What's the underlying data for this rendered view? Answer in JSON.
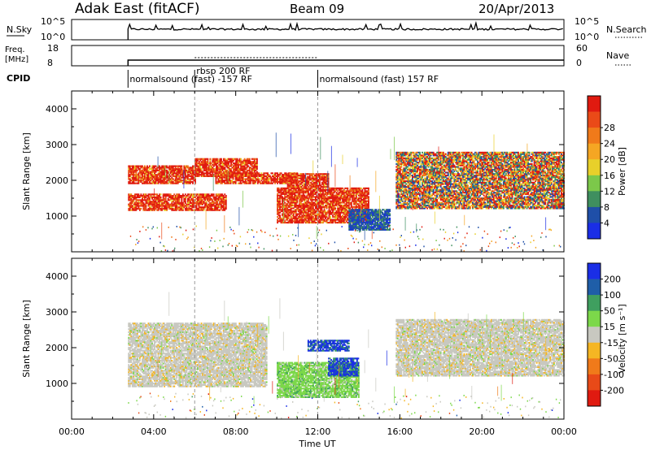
{
  "header": {
    "station": "Adak East (fitACF)",
    "beam": "Beam 09",
    "date": "20/Apr/2013"
  },
  "noise_panel": {
    "left_label": "N.Sky",
    "left_ticks": [
      "10^5",
      "10^0"
    ],
    "right_ticks": [
      "10^5",
      "10^0"
    ],
    "right_label": "N.Search"
  },
  "freq_panel": {
    "left_label_line1": "Freq.",
    "left_label_line2": "[MHz]",
    "left_ticks": [
      "18",
      "8"
    ],
    "right_ticks": [
      "60",
      "0"
    ],
    "right_label": "Nave"
  },
  "cpid": {
    "label": "CPID",
    "segments": [
      {
        "label": "normalsound (fast) -157 RF",
        "start_hour": 2.75
      },
      {
        "label": "rbsp 200 RF",
        "start_hour": 6.0
      },
      {
        "label": "normalsound (fast) 157 RF",
        "start_hour": 12.0
      }
    ]
  },
  "time_axis": {
    "label": "Time UT",
    "ticks": [
      "00:00",
      "04:00",
      "08:00",
      "12:00",
      "16:00",
      "20:00",
      "00:00"
    ],
    "range_hours": [
      0,
      24
    ]
  },
  "power_panel": {
    "ylabel": "Slant Range [km]",
    "yticks": [
      "1000",
      "2000",
      "3000",
      "4000"
    ],
    "colorbar_label": "Power [dB]",
    "colorbar_ticks": [
      "4",
      "8",
      "12",
      "16",
      "20",
      "24",
      "28"
    ],
    "colors": [
      "#1a2ee6",
      "#1f4fa8",
      "#3f8f5f",
      "#7cc84a",
      "#e8d02a",
      "#f5a623",
      "#f07a1a",
      "#ea4a18",
      "#e01a10"
    ]
  },
  "velocity_panel": {
    "ylabel": "Slant Range [km]",
    "yticks": [
      "1000",
      "2000",
      "3000",
      "4000"
    ],
    "colorbar_label": "Velocity [m s⁻¹]",
    "colorbar_ticks": [
      "200",
      "100",
      "50",
      "15",
      "-15",
      "-50",
      "-100",
      "-200"
    ],
    "colors": [
      "#1a2ee6",
      "#1f5ea8",
      "#3f9f5f",
      "#7cd84a",
      "#c8c8c0",
      "#f5b623",
      "#f07a1a",
      "#e84a18",
      "#e01a10"
    ]
  },
  "chart_data": {
    "type": "heatmap",
    "title": "Adak East (fitACF)",
    "xlabel": "Time UT",
    "ylabel": "Slant Range [km]",
    "xlim_hours": [
      0,
      24
    ],
    "ylim_km": [
      0,
      4500
    ],
    "power_blobs": [
      {
        "t0": 2.75,
        "t1": 7.5,
        "r0": 1150,
        "r1": 1600,
        "level": "high"
      },
      {
        "t0": 2.75,
        "t1": 6.0,
        "r0": 1900,
        "r1": 2400,
        "level": "high"
      },
      {
        "t0": 6.0,
        "t1": 9.0,
        "r0": 2100,
        "r1": 2600,
        "level": "high"
      },
      {
        "t0": 7.0,
        "t1": 11.0,
        "r0": 1900,
        "r1": 2200,
        "level": "high"
      },
      {
        "t0": 10.5,
        "t1": 12.5,
        "r0": 1800,
        "r1": 2200,
        "level": "high"
      },
      {
        "t0": 10.0,
        "t1": 14.5,
        "r0": 800,
        "r1": 1800,
        "level": "high"
      },
      {
        "t0": 13.5,
        "t1": 15.5,
        "r0": 600,
        "r1": 1200,
        "level": "low"
      },
      {
        "t0": 15.8,
        "t1": 24.0,
        "r0": 1200,
        "r1": 2800,
        "level": "mid"
      }
    ],
    "velocity_blobs": [
      {
        "t0": 2.75,
        "t1": 9.5,
        "r0": 900,
        "r1": 2700,
        "class": "-15..15"
      },
      {
        "t0": 10.0,
        "t1": 14.0,
        "r0": 600,
        "r1": 1600,
        "class": "15..50"
      },
      {
        "t0": 11.5,
        "t1": 13.5,
        "r0": 1900,
        "r1": 2200,
        "class": "100..200"
      },
      {
        "t0": 12.5,
        "t1": 14.0,
        "r0": 1200,
        "r1": 1700,
        "class": "100..200"
      },
      {
        "t0": 15.8,
        "t1": 24.0,
        "r0": 1200,
        "r1": 2800,
        "class": "-15..15"
      }
    ]
  }
}
